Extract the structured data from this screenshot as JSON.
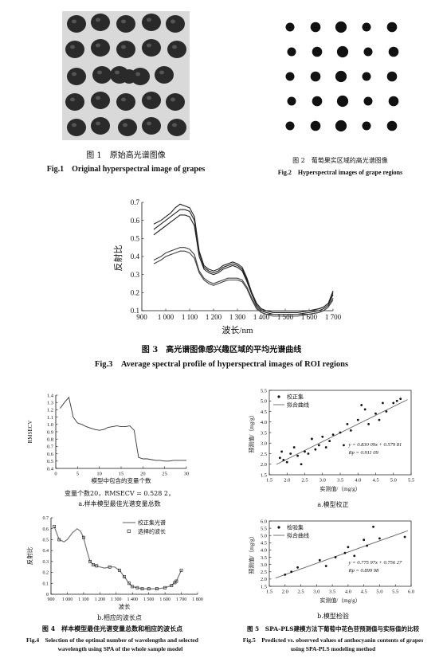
{
  "fig1": {
    "caption_cn": "图 1　原始高光谱图像",
    "caption_en": "Fig.1　Original hyperspectral image of grapes",
    "grid": {
      "rows": 5,
      "cols": 5
    }
  },
  "fig2": {
    "caption_cn": "图 2　葡萄果实区域的高光谱图像",
    "caption_en": "Fig.2　Hyperspectral images of grape regions",
    "grid": {
      "rows": 5,
      "cols": 5
    }
  },
  "fig3": {
    "caption_cn": "图 3　高光谱图像感兴趣区域的平均光谱曲线",
    "caption_en": "Fig.3　Average spectral profile of hyperspectral images of ROI regions"
  },
  "fig4": {
    "caption_cn": "图 4　样本模型最佳光谱变量总数和相应的波长点",
    "caption_en_1": "Fig.4　Selection of the optimal number of wavelengths and selected",
    "caption_en_2": "wavelength using SPA of the whole sample model",
    "sub_a": {
      "note": "变量个数20，RMSECV = 0.528 2，",
      "label": "a.样本模型最佳光谱变量总数"
    },
    "sub_b": {
      "label": "b.相应的波长点"
    }
  },
  "fig5": {
    "caption_cn": "图 5　SPA-PLS建模方法下葡萄中花色苷预测值与实际值的比较",
    "caption_en_1": "Fig.5　Predicted vs. observed values of anthocyanin contents of grapes",
    "caption_en_2": "using SPA-PLS modeling method",
    "sub_a": {
      "label": "a.模型校正",
      "eq": "y = 0.830 09x + 0.579 81",
      "r": "Rp = 0.911 09"
    },
    "sub_b": {
      "label": "b.模型检验",
      "eq": "y = 0.775 97x + 0.756 27",
      "r": "Rp = 0.899 98"
    }
  },
  "chart_data": [
    {
      "id": "fig3",
      "type": "line",
      "xlabel": "波长/nm",
      "ylabel": "反射比",
      "xlim": [
        900,
        1700
      ],
      "ylim": [
        0.1,
        0.7
      ],
      "xticks": [
        900,
        1000,
        1100,
        1200,
        1300,
        1400,
        1500,
        1600,
        1700
      ],
      "xtick_labels": [
        "900",
        "1 000",
        "1 100",
        "1 200",
        "1 300",
        "1 400",
        "1 500",
        "1 600",
        "1 700"
      ],
      "yticks": [
        0.1,
        0.2,
        0.3,
        0.4,
        0.5,
        0.6,
        0.7
      ],
      "ytick_labels": [
        "0.1",
        "0.2",
        "0.3",
        "0.4",
        "0.5",
        "0.6",
        "0.7"
      ],
      "x": [
        950,
        980,
        1000,
        1020,
        1040,
        1060,
        1080,
        1100,
        1120,
        1140,
        1160,
        1180,
        1200,
        1220,
        1240,
        1260,
        1280,
        1300,
        1320,
        1340,
        1360,
        1380,
        1400,
        1420,
        1450,
        1500,
        1550,
        1600,
        1640,
        1660,
        1680,
        1700
      ],
      "series": [
        {
          "values": [
            0.58,
            0.6,
            0.62,
            0.64,
            0.67,
            0.69,
            0.68,
            0.67,
            0.62,
            0.43,
            0.35,
            0.33,
            0.32,
            0.33,
            0.35,
            0.36,
            0.37,
            0.36,
            0.34,
            0.28,
            0.2,
            0.14,
            0.11,
            0.1,
            0.09,
            0.09,
            0.09,
            0.1,
            0.11,
            0.12,
            0.14,
            0.21
          ]
        },
        {
          "values": [
            0.55,
            0.58,
            0.6,
            0.62,
            0.64,
            0.66,
            0.66,
            0.65,
            0.6,
            0.42,
            0.34,
            0.32,
            0.31,
            0.32,
            0.34,
            0.35,
            0.36,
            0.35,
            0.33,
            0.27,
            0.2,
            0.14,
            0.11,
            0.1,
            0.09,
            0.09,
            0.09,
            0.1,
            0.11,
            0.12,
            0.14,
            0.2
          ]
        },
        {
          "values": [
            0.52,
            0.55,
            0.57,
            0.59,
            0.61,
            0.63,
            0.63,
            0.62,
            0.57,
            0.4,
            0.33,
            0.31,
            0.3,
            0.31,
            0.33,
            0.34,
            0.35,
            0.34,
            0.32,
            0.26,
            0.19,
            0.13,
            0.1,
            0.09,
            0.08,
            0.08,
            0.08,
            0.09,
            0.1,
            0.11,
            0.13,
            0.19
          ]
        },
        {
          "values": [
            0.38,
            0.4,
            0.42,
            0.43,
            0.44,
            0.45,
            0.45,
            0.44,
            0.41,
            0.32,
            0.28,
            0.26,
            0.25,
            0.26,
            0.27,
            0.28,
            0.28,
            0.28,
            0.27,
            0.23,
            0.17,
            0.12,
            0.09,
            0.08,
            0.08,
            0.08,
            0.08,
            0.08,
            0.09,
            0.1,
            0.12,
            0.17
          ]
        },
        {
          "values": [
            0.36,
            0.38,
            0.4,
            0.41,
            0.42,
            0.43,
            0.43,
            0.42,
            0.39,
            0.31,
            0.27,
            0.25,
            0.24,
            0.25,
            0.26,
            0.27,
            0.27,
            0.27,
            0.26,
            0.22,
            0.16,
            0.11,
            0.09,
            0.08,
            0.07,
            0.07,
            0.07,
            0.08,
            0.09,
            0.1,
            0.12,
            0.16
          ]
        }
      ]
    },
    {
      "id": "fig4a",
      "type": "line",
      "xlabel": "模型中包含的变量个数",
      "ylabel": "RMSECV",
      "xlim": [
        0,
        30
      ],
      "ylim": [
        0.4,
        1.4
      ],
      "xticks": [
        0,
        5,
        10,
        15,
        20,
        25,
        30
      ],
      "yticks": [
        0.4,
        0.5,
        0.6,
        0.7,
        0.8,
        0.9,
        1.0,
        1.1,
        1.2,
        1.3,
        1.4
      ],
      "ytick_labels": [
        "0.4",
        "0.5",
        "0.6",
        "0.7",
        "0.8",
        "0.9",
        "1.0",
        "1.1",
        "1.2",
        "1.3",
        "1.4"
      ],
      "x": [
        1,
        2,
        3,
        4,
        5,
        6,
        7,
        8,
        9,
        10,
        11,
        12,
        13,
        14,
        15,
        16,
        17,
        18,
        19,
        20,
        21,
        22,
        23,
        24,
        25,
        26,
        27,
        28,
        29,
        30
      ],
      "values": [
        1.22,
        1.3,
        1.37,
        1.1,
        1.02,
        1.0,
        0.97,
        0.95,
        0.93,
        0.92,
        0.93,
        0.96,
        0.97,
        0.98,
        0.97,
        0.97,
        0.98,
        0.92,
        0.55,
        0.53,
        0.53,
        0.52,
        0.51,
        0.51,
        0.5,
        0.5,
        0.51,
        0.51,
        0.51,
        0.51
      ]
    },
    {
      "id": "fig4b",
      "type": "line",
      "xlabel": "波长",
      "ylabel": "反射比",
      "xlim": [
        900,
        1800
      ],
      "ylim": [
        0,
        0.7
      ],
      "xticks": [
        900,
        1000,
        1100,
        1200,
        1300,
        1400,
        1500,
        1600,
        1700,
        1800
      ],
      "xtick_labels": [
        "900",
        "1 000",
        "1 100",
        "1 200",
        "1 300",
        "1 400",
        "1 500",
        "1 600",
        "1 700",
        "1 800"
      ],
      "yticks": [
        0,
        0.1,
        0.2,
        0.3,
        0.4,
        0.5,
        0.6,
        0.7
      ],
      "ytick_labels": [
        "0",
        "0.1",
        "0.2",
        "0.3",
        "0.4",
        "0.5",
        "0.6",
        "0.7"
      ],
      "legend": [
        "校正集光谱",
        "选择的波长"
      ],
      "legend_loc": "top-right",
      "x": [
        920,
        950,
        980,
        1000,
        1030,
        1060,
        1080,
        1100,
        1120,
        1140,
        1160,
        1180,
        1200,
        1230,
        1260,
        1290,
        1320,
        1350,
        1380,
        1400,
        1430,
        1460,
        1500,
        1550,
        1600,
        1640,
        1670,
        1700
      ],
      "values": [
        0.62,
        0.5,
        0.48,
        0.5,
        0.56,
        0.6,
        0.58,
        0.52,
        0.4,
        0.3,
        0.27,
        0.26,
        0.25,
        0.24,
        0.25,
        0.25,
        0.22,
        0.16,
        0.1,
        0.07,
        0.06,
        0.05,
        0.05,
        0.05,
        0.06,
        0.08,
        0.12,
        0.22
      ],
      "selected_x": [
        920,
        950,
        1100,
        1140,
        1160,
        1180,
        1260,
        1320,
        1350,
        1380,
        1400,
        1430,
        1460,
        1500,
        1550,
        1600,
        1640,
        1660,
        1670,
        1700
      ]
    },
    {
      "id": "fig5a",
      "type": "scatter",
      "xlabel": "实测值/（mg/g）",
      "ylabel": "预测值/（mg/g）",
      "xlim": [
        1.5,
        5.5
      ],
      "ylim": [
        1.5,
        5.5
      ],
      "xticks": [
        1.5,
        2.0,
        2.5,
        3.0,
        3.5,
        4.0,
        4.5,
        5.0,
        5.5
      ],
      "xtick_labels": [
        "1.5",
        "2.0",
        "2.5",
        "3.0",
        "3.5",
        "4.0",
        "4.5",
        "5.0",
        "5.5"
      ],
      "yticks": [
        1.5,
        2.0,
        2.5,
        3.0,
        3.5,
        4.0,
        4.5,
        5.0,
        5.5
      ],
      "ytick_labels": [
        "1.5",
        "2.0",
        "2.5",
        "3.0",
        "3.5",
        "4.0",
        "4.5",
        "5.0",
        "5.5"
      ],
      "legend": [
        "校正集",
        "拟合曲线"
      ],
      "legend_loc": "top-left",
      "fit": {
        "slope": 0.83009,
        "intercept": 0.57981
      },
      "points": [
        [
          1.8,
          2.3
        ],
        [
          1.85,
          2.6
        ],
        [
          1.9,
          2.2
        ],
        [
          2.0,
          2.1
        ],
        [
          2.1,
          2.5
        ],
        [
          2.2,
          2.8
        ],
        [
          2.3,
          2.4
        ],
        [
          2.4,
          2.0
        ],
        [
          2.5,
          2.6
        ],
        [
          2.6,
          2.5
        ],
        [
          2.7,
          3.2
        ],
        [
          2.8,
          2.7
        ],
        [
          2.9,
          2.9
        ],
        [
          3.0,
          3.3
        ],
        [
          3.1,
          2.8
        ],
        [
          3.2,
          3.1
        ],
        [
          3.3,
          3.4
        ],
        [
          3.5,
          3.5
        ],
        [
          3.6,
          2.9
        ],
        [
          3.7,
          3.9
        ],
        [
          3.8,
          3.6
        ],
        [
          4.0,
          4.1
        ],
        [
          4.1,
          4.8
        ],
        [
          4.2,
          4.6
        ],
        [
          4.3,
          3.9
        ],
        [
          4.5,
          4.4
        ],
        [
          4.6,
          4.1
        ],
        [
          4.7,
          4.9
        ],
        [
          4.8,
          4.5
        ],
        [
          5.0,
          4.9
        ],
        [
          5.1,
          5.0
        ],
        [
          5.2,
          5.1
        ]
      ]
    },
    {
      "id": "fig5b",
      "type": "scatter",
      "xlabel": "实测值/（mg/g）",
      "ylabel": "预测值/（mg/g）",
      "xlim": [
        1.5,
        6.0
      ],
      "ylim": [
        1.5,
        6.0
      ],
      "xticks": [
        1.5,
        2.0,
        2.5,
        3.0,
        3.5,
        4.0,
        4.5,
        5.0,
        5.5,
        6.0
      ],
      "xtick_labels": [
        "1.5",
        "2.0",
        "2.5",
        "3.0",
        "3.5",
        "4.0",
        "4.5",
        "5.0",
        "5.5",
        "6.0"
      ],
      "yticks": [
        1.5,
        2.0,
        2.5,
        3.0,
        3.5,
        4.0,
        4.5,
        5.0,
        5.5,
        6.0
      ],
      "ytick_labels": [
        "1.5",
        "2.0",
        "2.5",
        "3.0",
        "3.5",
        "4.0",
        "4.5",
        "5.0",
        "5.5",
        "6.0"
      ],
      "legend": [
        "检验集",
        "拟合曲线"
      ],
      "legend_loc": "top-left",
      "fit": {
        "slope": 0.77597,
        "intercept": 0.75627
      },
      "points": [
        [
          2.0,
          2.3
        ],
        [
          2.2,
          2.5
        ],
        [
          2.4,
          2.8
        ],
        [
          3.1,
          3.3
        ],
        [
          3.3,
          2.9
        ],
        [
          3.6,
          3.5
        ],
        [
          3.9,
          3.8
        ],
        [
          4.0,
          4.2
        ],
        [
          4.2,
          3.6
        ],
        [
          4.5,
          4.7
        ],
        [
          4.6,
          4.3
        ],
        [
          4.8,
          5.6
        ],
        [
          5.0,
          4.8
        ],
        [
          5.8,
          4.9
        ]
      ]
    }
  ]
}
